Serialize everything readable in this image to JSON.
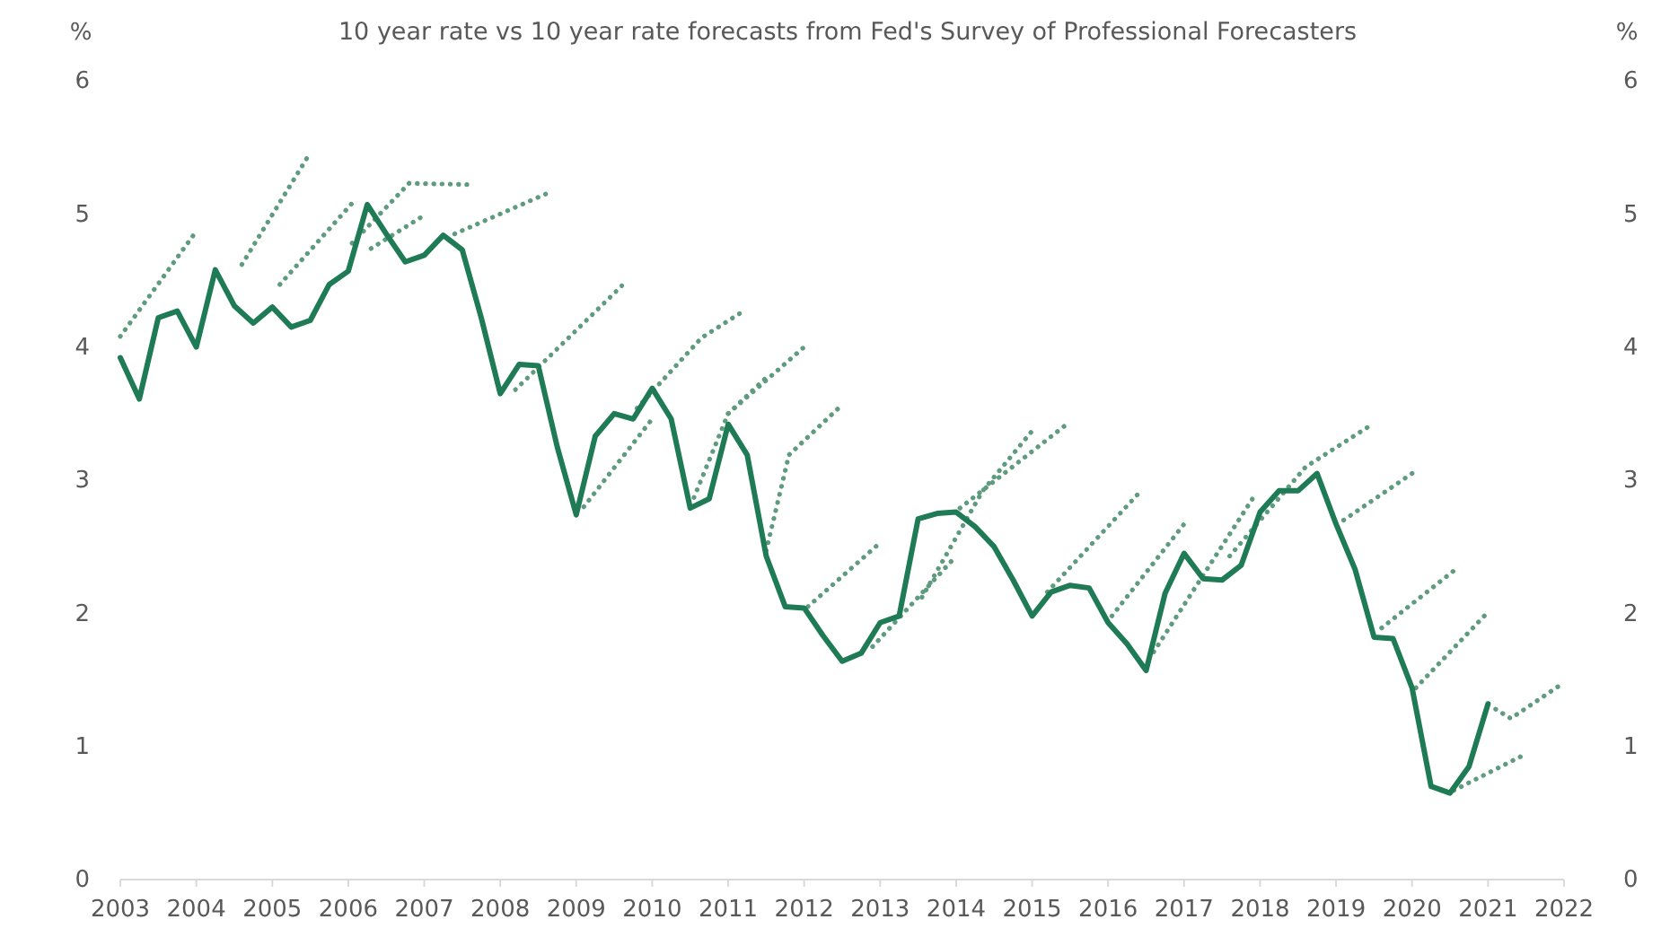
{
  "chart_data": {
    "type": "line",
    "title": "10 year rate vs 10 year rate forecasts from Fed's Survey of Professional Forecasters",
    "ylabel": "%",
    "y2label": "%",
    "xlim": [
      2003,
      2022
    ],
    "xticks": [
      2003,
      2004,
      2005,
      2006,
      2007,
      2008,
      2009,
      2010,
      2011,
      2012,
      2013,
      2014,
      2015,
      2016,
      2017,
      2018,
      2019,
      2020,
      2021,
      2022
    ],
    "ylim": [
      0,
      6
    ],
    "yticks": [
      0,
      1,
      2,
      3,
      4,
      5,
      6
    ],
    "y2lim": [
      0,
      6
    ],
    "y2ticks": [
      0,
      1,
      2,
      3,
      4,
      5,
      6
    ],
    "grid": false,
    "marker": "none",
    "series": [
      {
        "color": "#5f9c7f",
        "line_style": "dotted",
        "x": [
          2003.0,
          2004.0
        ],
        "values": [
          4.08,
          4.87
        ]
      },
      {
        "color": "#5f9c7f",
        "line_style": "dotted",
        "x": [
          2004.6,
          2005.5
        ],
        "values": [
          4.62,
          5.46
        ]
      },
      {
        "color": "#5f9c7f",
        "line_style": "dotted",
        "x": [
          2005.1,
          2006.05
        ],
        "values": [
          4.47,
          5.08
        ]
      },
      {
        "color": "#5f9c7f",
        "line_style": "dotted",
        "x": [
          2006.05,
          2006.8,
          2007.6
        ],
        "values": [
          4.78,
          5.23,
          5.22
        ]
      },
      {
        "color": "#5f9c7f",
        "line_style": "dotted",
        "x": [
          2006.3,
          2007.0
        ],
        "values": [
          4.74,
          4.99
        ]
      },
      {
        "color": "#5f9c7f",
        "line_style": "dotted",
        "x": [
          2007.4,
          2008.6
        ],
        "values": [
          4.85,
          5.15
        ]
      },
      {
        "color": "#5f9c7f",
        "line_style": "dotted",
        "x": [
          2008.2,
          2009.6
        ],
        "values": [
          3.68,
          4.46
        ]
      },
      {
        "color": "#5f9c7f",
        "line_style": "dotted",
        "x": [
          2009.1,
          2010.0
        ],
        "values": [
          2.8,
          3.46
        ]
      },
      {
        "color": "#5f9c7f",
        "line_style": "dotted",
        "x": [
          2009.8,
          2010.65,
          2011.2
        ],
        "values": [
          3.54,
          4.07,
          4.27
        ]
      },
      {
        "color": "#5f9c7f",
        "line_style": "dotted",
        "x": [
          2010.55,
          2011.0,
          2011.5
        ],
        "values": [
          2.87,
          3.5,
          3.77
        ]
      },
      {
        "color": "#5f9c7f",
        "line_style": "dotted",
        "x": [
          2011.0,
          2012.0
        ],
        "values": [
          3.5,
          4.0
        ]
      },
      {
        "color": "#5f9c7f",
        "line_style": "dotted",
        "x": [
          2011.5,
          2011.8,
          2012.45
        ],
        "values": [
          2.47,
          3.19,
          3.54
        ]
      },
      {
        "color": "#5f9c7f",
        "line_style": "dotted",
        "x": [
          2012.05,
          2013.0
        ],
        "values": [
          2.05,
          2.53
        ]
      },
      {
        "color": "#5f9c7f",
        "line_style": "dotted",
        "x": [
          2012.9,
          2014.0
        ],
        "values": [
          1.75,
          2.43
        ]
      },
      {
        "color": "#5f9c7f",
        "line_style": "dotted",
        "x": [
          2013.55,
          2014.35,
          2015.0
        ],
        "values": [
          2.12,
          2.92,
          3.37
        ]
      },
      {
        "color": "#5f9c7f",
        "line_style": "dotted",
        "x": [
          2014.05,
          2015.5
        ],
        "values": [
          2.79,
          3.44
        ]
      },
      {
        "color": "#5f9c7f",
        "line_style": "dotted",
        "x": [
          2015.2,
          2016.4
        ],
        "values": [
          2.16,
          2.9
        ]
      },
      {
        "color": "#5f9c7f",
        "line_style": "dotted",
        "x": [
          2016.05,
          2017.0
        ],
        "values": [
          1.98,
          2.67
        ]
      },
      {
        "color": "#5f9c7f",
        "line_style": "dotted",
        "x": [
          2016.6,
          2017.9
        ],
        "values": [
          1.71,
          2.86
        ]
      },
      {
        "color": "#5f9c7f",
        "line_style": "dotted",
        "x": [
          2017.6,
          2018.6,
          2019.45
        ],
        "values": [
          2.43,
          3.1,
          3.41
        ]
      },
      {
        "color": "#5f9c7f",
        "line_style": "dotted",
        "x": [
          2019.1,
          2020.05
        ],
        "values": [
          2.7,
          3.07
        ]
      },
      {
        "color": "#5f9c7f",
        "line_style": "dotted",
        "x": [
          2019.6,
          2020.55
        ],
        "values": [
          1.89,
          2.32
        ]
      },
      {
        "color": "#5f9c7f",
        "line_style": "dotted",
        "x": [
          2020.05,
          2021.0
        ],
        "values": [
          1.44,
          2.01
        ]
      },
      {
        "color": "#5f9c7f",
        "line_style": "dotted",
        "x": [
          2020.55,
          2021.45
        ],
        "values": [
          0.67,
          0.93
        ]
      },
      {
        "color": "#5f9c7f",
        "line_style": "dotted",
        "x": [
          2021.1,
          2021.3,
          2022.0
        ],
        "values": [
          1.28,
          1.21,
          1.48
        ]
      },
      {
        "color": "#1e7b55",
        "line_style": "solid",
        "x": [
          2003,
          2003.25,
          2003.5,
          2003.75,
          2004,
          2004.25,
          2004.5,
          2004.75,
          2005,
          2005.25,
          2005.5,
          2005.75,
          2006,
          2006.25,
          2006.5,
          2006.75,
          2007,
          2007.25,
          2007.5,
          2007.75,
          2008,
          2008.25,
          2008.5,
          2008.75,
          2009,
          2009.25,
          2009.5,
          2009.75,
          2010,
          2010.25,
          2010.5,
          2010.75,
          2011,
          2011.25,
          2011.5,
          2011.75,
          2012,
          2012.25,
          2012.5,
          2012.75,
          2013,
          2013.25,
          2013.5,
          2013.75,
          2014,
          2014.25,
          2014.5,
          2014.75,
          2015,
          2015.25,
          2015.5,
          2015.75,
          2016,
          2016.25,
          2016.5,
          2016.75,
          2017,
          2017.25,
          2017.5,
          2017.75,
          2018,
          2018.25,
          2018.5,
          2018.75,
          2019,
          2019.25,
          2019.5,
          2019.75,
          2020,
          2020.25,
          2020.5,
          2020.75,
          2021
        ],
        "values": [
          3.92,
          3.61,
          4.22,
          4.27,
          4.0,
          4.58,
          4.31,
          4.18,
          4.3,
          4.15,
          4.2,
          4.47,
          4.57,
          5.07,
          4.85,
          4.64,
          4.69,
          4.84,
          4.73,
          4.22,
          3.65,
          3.87,
          3.86,
          3.25,
          2.74,
          3.33,
          3.5,
          3.46,
          3.69,
          3.46,
          2.79,
          2.86,
          3.42,
          3.19,
          2.43,
          2.05,
          2.04,
          1.83,
          1.64,
          1.7,
          1.93,
          1.98,
          2.71,
          2.75,
          2.76,
          2.65,
          2.5,
          2.25,
          1.98,
          2.16,
          2.21,
          2.19,
          1.93,
          1.77,
          1.57,
          2.15,
          2.45,
          2.26,
          2.25,
          2.36,
          2.76,
          2.92,
          2.92,
          3.05,
          2.67,
          2.33,
          1.82,
          1.81,
          1.44,
          0.7,
          0.65,
          0.85,
          1.32
        ]
      }
    ]
  }
}
